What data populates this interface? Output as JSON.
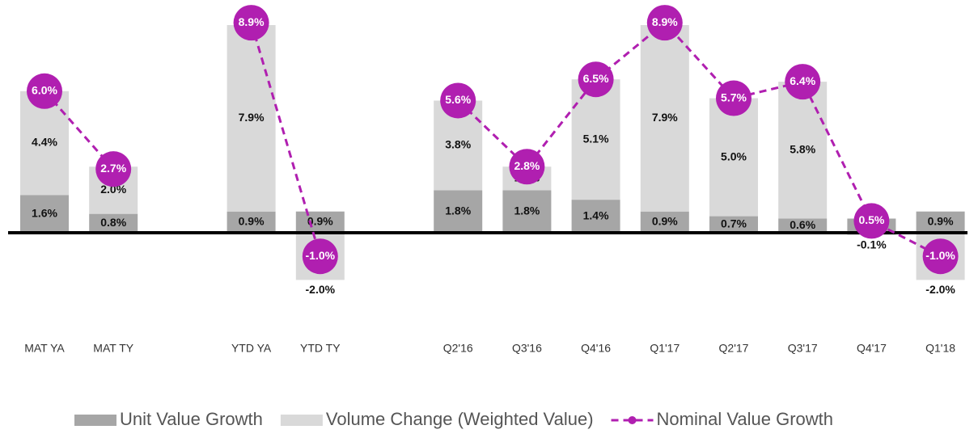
{
  "chart_data": {
    "type": "bar",
    "categories": [
      "MAT YA",
      "MAT TY",
      null,
      "YTD YA",
      "YTD TY",
      null,
      "Q2'16",
      "Q3'16",
      "Q4'16",
      "Q1'17",
      "Q2'17",
      "Q3'17",
      "Q4'17",
      "Q1'18"
    ],
    "series": [
      {
        "name": "Unit Value Growth",
        "type": "bar",
        "color": "#a6a6a6",
        "values": [
          1.6,
          0.8,
          null,
          0.9,
          0.9,
          null,
          1.8,
          1.8,
          1.4,
          0.9,
          0.7,
          0.6,
          0.6,
          0.9
        ],
        "value_labels": [
          "1.6%",
          "0.8%",
          null,
          "0.9%",
          "0.9%",
          null,
          "1.8%",
          "1.8%",
          "1.4%",
          "0.9%",
          "0.7%",
          "0.6%",
          "0.6%",
          "0.9%"
        ]
      },
      {
        "name": "Volume Change (Weighted Value)",
        "type": "bar",
        "color": "#d9d9d9",
        "values": [
          4.4,
          2.0,
          null,
          7.9,
          -2.0,
          null,
          3.8,
          1.0,
          5.1,
          7.9,
          5.0,
          5.8,
          -0.1,
          -2.0
        ],
        "value_labels": [
          "4.4%",
          "2.0%",
          null,
          "7.9%",
          "-2.0%",
          null,
          "3.8%",
          "1.0%",
          "5.1%",
          "7.9%",
          "5.0%",
          "5.8%",
          "-0.1%",
          "-2.0%"
        ]
      },
      {
        "name": "Nominal Value Growth",
        "type": "line",
        "color": "#b01fb0",
        "values": [
          6.0,
          2.7,
          null,
          8.9,
          -1.0,
          null,
          5.6,
          2.8,
          6.5,
          8.9,
          5.7,
          6.4,
          0.5,
          -1.0
        ],
        "value_labels": [
          "6.0%",
          "2.7%",
          null,
          "8.9%",
          "-1.0%",
          null,
          "5.6%",
          "2.8%",
          "6.5%",
          "8.9%",
          "5.7%",
          "6.4%",
          "0.5%",
          "-1.0%"
        ]
      }
    ],
    "ylim": [
      -3,
      9.5
    ],
    "legend": "bottom"
  }
}
